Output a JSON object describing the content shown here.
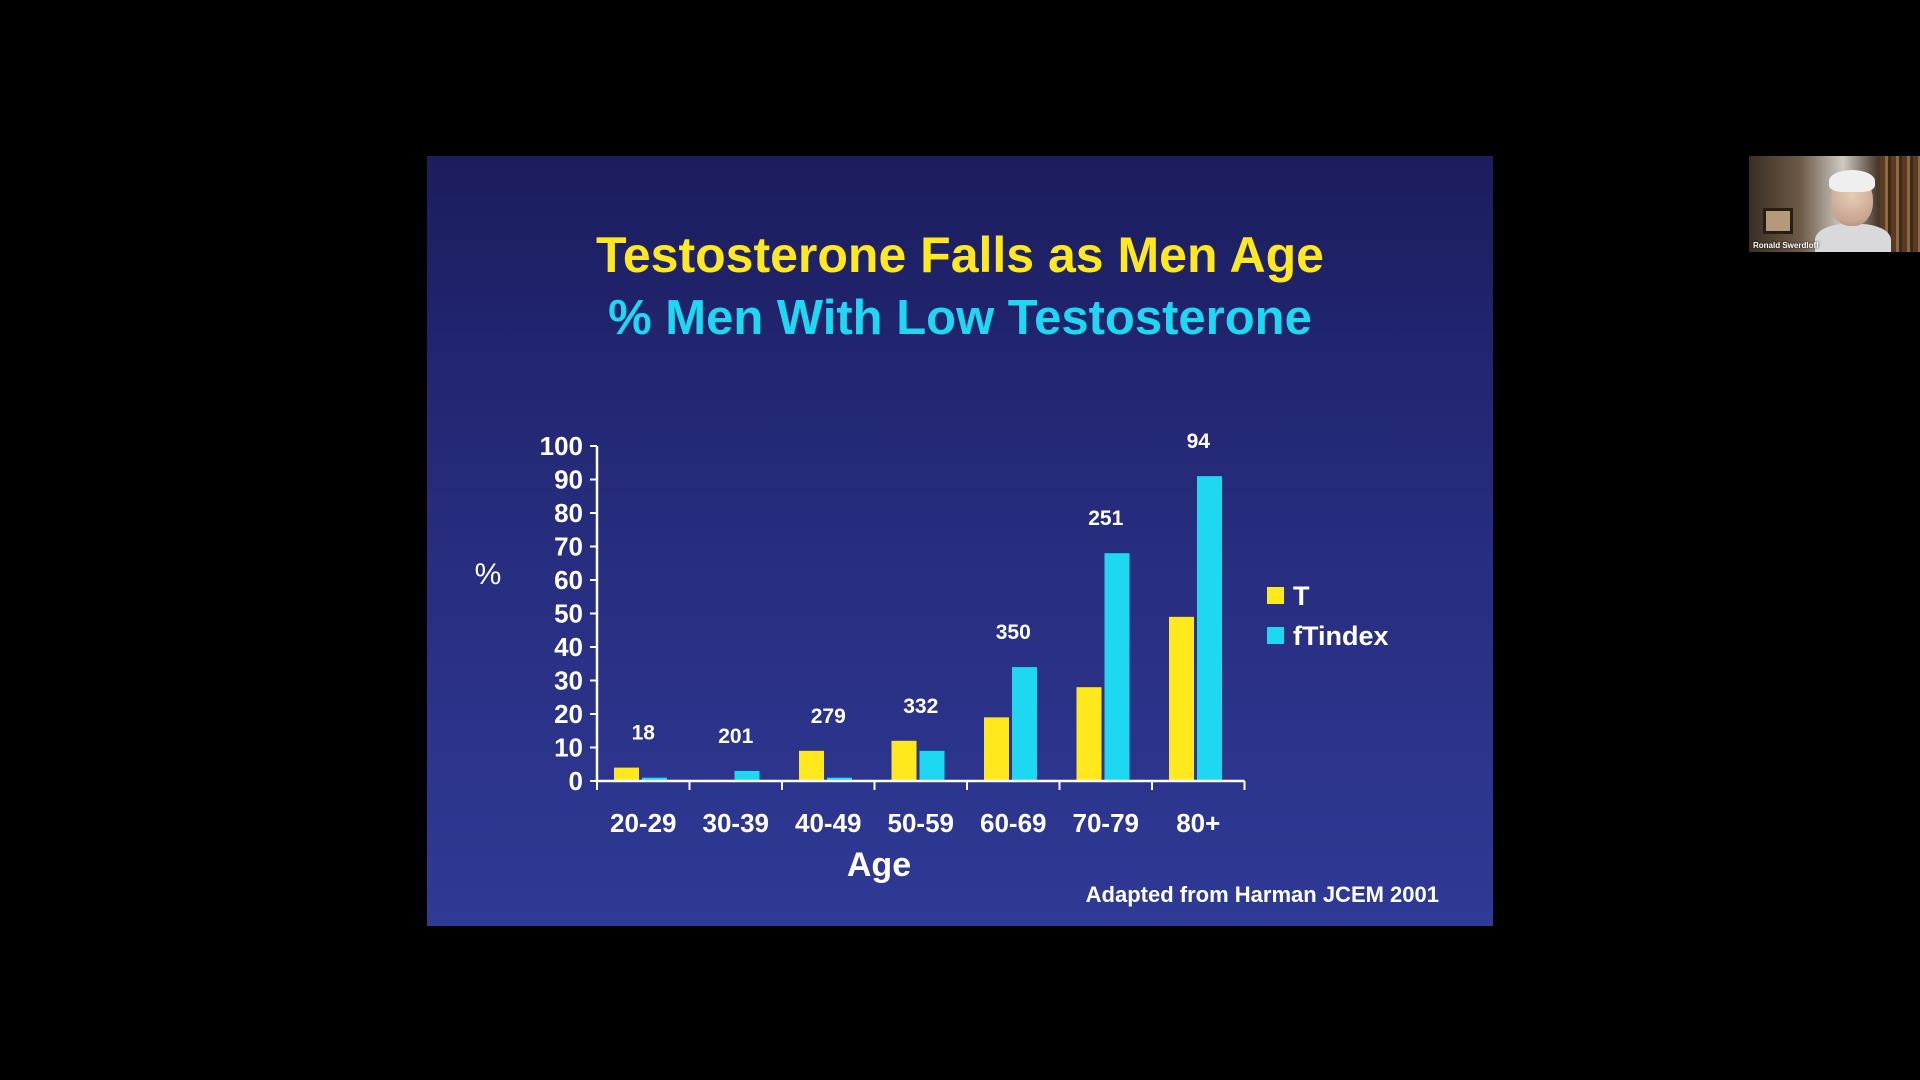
{
  "slide": {
    "title": "Testosterone Falls as Men Age",
    "subtitle": "% Men With Low Testosterone",
    "source": "Adapted from Harman JCEM 2001"
  },
  "webcam": {
    "participant_name": "Ronald Swerdloff"
  },
  "colors": {
    "background": "#000000",
    "slide_top": "#1b1d5e",
    "slide_bottom": "#2f3a96",
    "title": "#ffe81c",
    "subtitle": "#1ed8f2",
    "series_T": "#ffe81c",
    "series_fTindex": "#1ed8f2"
  },
  "chart_data": {
    "type": "bar",
    "title": "Testosterone Falls as Men Age",
    "subtitle": "% Men With Low Testosterone",
    "xlabel": "Age",
    "ylabel": "%",
    "ylim": [
      0,
      100
    ],
    "yticks": [
      0,
      10,
      20,
      30,
      40,
      50,
      60,
      70,
      80,
      90,
      100
    ],
    "grid": false,
    "legend_position": "right",
    "categories": [
      "20-29",
      "30-39",
      "40-49",
      "50-59",
      "60-69",
      "70-79",
      "80+"
    ],
    "series": [
      {
        "name": "T",
        "color": "#ffe81c",
        "values": [
          4,
          0,
          9,
          12,
          19,
          28,
          49
        ]
      },
      {
        "name": "fTindex",
        "color": "#1ed8f2",
        "values": [
          1,
          3,
          1,
          9,
          34,
          68,
          91
        ]
      }
    ],
    "group_labels": [
      "18",
      "201",
      "279",
      "332",
      "350",
      "251",
      "94"
    ]
  }
}
